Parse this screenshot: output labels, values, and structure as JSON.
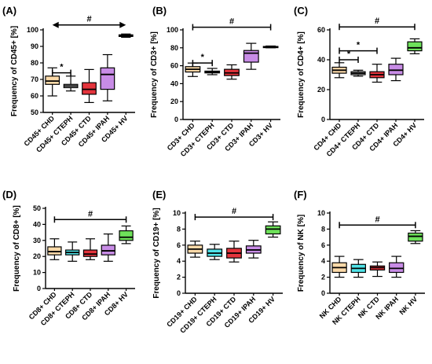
{
  "chart_data": [
    {
      "panel_label": "(A)",
      "type": "box",
      "ylabel": "Frequency of CD45+ [%]",
      "ylim": [
        50,
        100
      ],
      "yticks": [
        50,
        60,
        70,
        80,
        90,
        100
      ],
      "categories": [
        "CD45+ CHD",
        "CD45+ CTEPH",
        "CD45+ CTD",
        "CD45+ IPAH",
        "CD45+ HV"
      ],
      "colors": [
        "#FBD9A8",
        "#CFCFCF",
        "#E4343C",
        "#C88CE6",
        "#BDBDBD"
      ],
      "boxes": [
        {
          "min": 60,
          "q1": 67,
          "median": 69,
          "q3": 72,
          "max": 77
        },
        {
          "min": 63,
          "q1": 65,
          "median": 66,
          "q3": 67,
          "max": 72
        },
        {
          "min": 56,
          "q1": 61,
          "median": 64,
          "q3": 68,
          "max": 76
        },
        {
          "min": 57,
          "q1": 64,
          "median": 73,
          "q3": 77,
          "max": 85
        },
        {
          "min": 95.5,
          "q1": 96,
          "median": 96.5,
          "q3": 97,
          "max": 97.5
        }
      ],
      "significance": [
        {
          "from": 0,
          "to": 1,
          "label": "*",
          "y": 74,
          "style": "bracket"
        },
        {
          "from": 0,
          "to": 4,
          "label": "#",
          "y": 103,
          "style": "arrow"
        }
      ]
    },
    {
      "panel_label": "(B)",
      "type": "box",
      "ylabel": "Frequency of CD3+ [%]",
      "ylim": [
        0,
        100
      ],
      "yticks": [
        0,
        20,
        40,
        60,
        80,
        100
      ],
      "categories": [
        "CD3+ CHD",
        "CD3+ CTEPH",
        "CD3+ CTD",
        "CD3+ IPAH",
        "CD3+ HV"
      ],
      "colors": [
        "#FBD9A8",
        "#CFCFCF",
        "#E4343C",
        "#C88CE6",
        "#BDBDBD"
      ],
      "boxes": [
        {
          "min": 48,
          "q1": 53,
          "median": 56,
          "q3": 59,
          "max": 63
        },
        {
          "min": 50,
          "q1": 52,
          "median": 53,
          "q3": 54,
          "max": 57
        },
        {
          "min": 45,
          "q1": 49,
          "median": 52,
          "q3": 56,
          "max": 61
        },
        {
          "min": 56,
          "q1": 64,
          "median": 74,
          "q3": 77,
          "max": 85
        },
        {
          "min": 80,
          "q1": 80.5,
          "median": 81,
          "q3": 81.5,
          "max": 82
        }
      ],
      "significance": [
        {
          "from": 0,
          "to": 1,
          "label": "*",
          "y": 63,
          "style": "bracket"
        },
        {
          "from": 0,
          "to": 4,
          "label": "#",
          "y": 103,
          "style": "bracket"
        }
      ]
    },
    {
      "panel_label": "(C)",
      "type": "box",
      "ylabel": "Frequency of CD4+ [%]",
      "ylim": [
        0,
        60
      ],
      "yticks": [
        0,
        20,
        40,
        60
      ],
      "categories": [
        "CD4+ CHD",
        "CD4+ CTEPH",
        "CD4+ CTD",
        "CD4+ IPAH",
        "CD4+ HV"
      ],
      "colors": [
        "#FBD9A8",
        "#CFCFCF",
        "#E4343C",
        "#C88CE6",
        "#6EE25A"
      ],
      "boxes": [
        {
          "min": 28,
          "q1": 31,
          "median": 33,
          "q3": 35,
          "max": 38
        },
        {
          "min": 29,
          "q1": 30,
          "median": 31,
          "q3": 32,
          "max": 33
        },
        {
          "min": 25,
          "q1": 28,
          "median": 30,
          "q3": 32,
          "max": 37
        },
        {
          "min": 26,
          "q1": 30,
          "median": 33,
          "q3": 37,
          "max": 41
        },
        {
          "min": 44,
          "q1": 46,
          "median": 48,
          "q3": 52,
          "max": 54
        }
      ],
      "significance": [
        {
          "from": 0,
          "to": 1,
          "label": "*",
          "y": 40,
          "style": "bracket"
        },
        {
          "from": 0,
          "to": 2,
          "label": "*",
          "y": 46,
          "style": "bracket"
        },
        {
          "from": 0,
          "to": 4,
          "label": "#",
          "y": 62,
          "style": "bracket"
        }
      ]
    },
    {
      "panel_label": "(D)",
      "type": "box",
      "ylabel": "Frequency of CD8+ [%]",
      "ylim": [
        0,
        50
      ],
      "yticks": [
        0,
        10,
        20,
        30,
        40,
        50
      ],
      "categories": [
        "CD8+ CHD",
        "CD8+ CTEPH",
        "CD8+ CTD",
        "CD8+ IPAH",
        "CD8+ HV"
      ],
      "colors": [
        "#FBD9A8",
        "#4FE3E8",
        "#E4343C",
        "#C88CE6",
        "#6EE25A"
      ],
      "boxes": [
        {
          "min": 18,
          "q1": 21,
          "median": 23,
          "q3": 26,
          "max": 31
        },
        {
          "min": 17,
          "q1": 21,
          "median": 22.5,
          "q3": 24,
          "max": 29
        },
        {
          "min": 18,
          "q1": 20,
          "median": 21.5,
          "q3": 24,
          "max": 31
        },
        {
          "min": 17,
          "q1": 21,
          "median": 23.5,
          "q3": 27,
          "max": 34
        },
        {
          "min": 28,
          "q1": 30,
          "median": 32,
          "q3": 36,
          "max": 39
        }
      ],
      "significance": [
        {
          "from": 0,
          "to": 4,
          "label": "#",
          "y": 43,
          "style": "bracket"
        }
      ]
    },
    {
      "panel_label": "(E)",
      "type": "box",
      "ylabel": "Frequency of CD19+ [%]",
      "ylim": [
        0,
        10
      ],
      "yticks": [
        0,
        2,
        4,
        6,
        8,
        10
      ],
      "categories": [
        "CD19+ CHD",
        "CD19+ CTEPH",
        "CD19+ CTD",
        "CD19+ IPAH",
        "CD19+ HV"
      ],
      "colors": [
        "#FBD9A8",
        "#4FE3E8",
        "#E4343C",
        "#C88CE6",
        "#6EE25A"
      ],
      "boxes": [
        {
          "min": 4.5,
          "q1": 5.0,
          "median": 5.5,
          "q3": 6.0,
          "max": 6.5
        },
        {
          "min": 4.2,
          "q1": 4.6,
          "median": 5.0,
          "q3": 5.5,
          "max": 6.1
        },
        {
          "min": 3.9,
          "q1": 4.4,
          "median": 5.0,
          "q3": 5.6,
          "max": 6.5
        },
        {
          "min": 4.4,
          "q1": 5.0,
          "median": 5.4,
          "q3": 5.9,
          "max": 6.6
        },
        {
          "min": 7.0,
          "q1": 7.4,
          "median": 8.0,
          "q3": 8.4,
          "max": 8.9
        }
      ],
      "significance": [
        {
          "from": 0,
          "to": 4,
          "label": "#",
          "y": 9.5,
          "style": "bracket"
        }
      ]
    },
    {
      "panel_label": "(F)",
      "type": "box",
      "ylabel": "Frequency of NK [%]",
      "ylim": [
        0,
        10
      ],
      "yticks": [
        0,
        2,
        4,
        6,
        8,
        10
      ],
      "categories": [
        "NK CHD",
        "NK CTEPH",
        "NK CTD",
        "NK IPAH",
        "NK HV"
      ],
      "colors": [
        "#FBD9A8",
        "#4FE3E8",
        "#E4343C",
        "#C88CE6",
        "#6EE25A"
      ],
      "boxes": [
        {
          "min": 2.0,
          "q1": 2.6,
          "median": 3.2,
          "q3": 3.8,
          "max": 4.6
        },
        {
          "min": 2.0,
          "q1": 2.6,
          "median": 3.1,
          "q3": 3.6,
          "max": 4.2
        },
        {
          "min": 2.1,
          "q1": 2.9,
          "median": 3.2,
          "q3": 3.4,
          "max": 3.9
        },
        {
          "min": 2.0,
          "q1": 2.6,
          "median": 3.1,
          "q3": 3.8,
          "max": 4.6
        },
        {
          "min": 6.2,
          "q1": 6.5,
          "median": 7.1,
          "q3": 7.5,
          "max": 7.8
        }
      ],
      "significance": [
        {
          "from": 0,
          "to": 4,
          "label": "#",
          "y": 8.5,
          "style": "bracket"
        }
      ]
    }
  ]
}
